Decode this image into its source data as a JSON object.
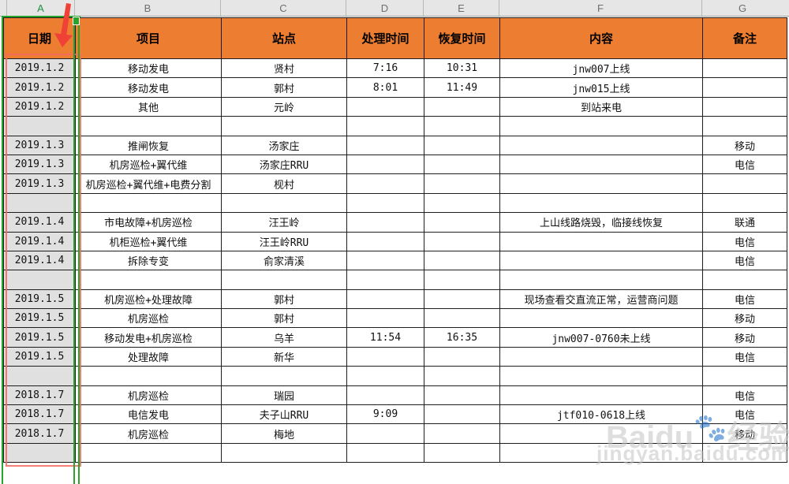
{
  "sheet": {
    "corner_label": "",
    "column_letters": [
      "A",
      "B",
      "C",
      "D",
      "E",
      "F",
      "G"
    ],
    "selected_column": "A",
    "headers": [
      "日期",
      "项目",
      "站点",
      "处理时间",
      "恢复时间",
      "内容",
      "备注"
    ],
    "rows": [
      [
        "2019.1.2",
        "移动发电",
        "贤村",
        "7:16",
        "10:31",
        "jnw007上线",
        ""
      ],
      [
        "2019.1.2",
        "移动发电",
        "郭村",
        "8:01",
        "11:49",
        "jnw015上线",
        ""
      ],
      [
        "2019.1.2",
        "其他",
        "元岭",
        "",
        "",
        "到站来电",
        ""
      ],
      [
        "",
        "",
        "",
        "",
        "",
        "",
        ""
      ],
      [
        "2019.1.3",
        "推闸恢复",
        "汤家庄",
        "",
        "",
        "",
        "移动"
      ],
      [
        "2019.1.3",
        "机房巡检+翼代维",
        "汤家庄RRU",
        "",
        "",
        "",
        "电信"
      ],
      [
        "2019.1.3",
        "机房巡检+翼代维+电费分割",
        "枧村",
        "",
        "",
        "",
        ""
      ],
      [
        "",
        "",
        "",
        "",
        "",
        "",
        ""
      ],
      [
        "2019.1.4",
        "市电故障+机房巡检",
        "汪王岭",
        "",
        "",
        "上山线路烧毁，临接线恢复",
        "联通"
      ],
      [
        "2019.1.4",
        "机柜巡检+翼代维",
        "汪王岭RRU",
        "",
        "",
        "",
        "电信"
      ],
      [
        "2019.1.4",
        "拆除专变",
        "俞家清溪",
        "",
        "",
        "",
        "电信"
      ],
      [
        "",
        "",
        "",
        "",
        "",
        "",
        ""
      ],
      [
        "2019.1.5",
        "机房巡检+处理故障",
        "郭村",
        "",
        "",
        "现场查看交直流正常，运营商问题",
        "电信"
      ],
      [
        "2019.1.5",
        "机房巡检",
        "郭村",
        "",
        "",
        "",
        "移动"
      ],
      [
        "2019.1.5",
        "移动发电+机房巡检",
        "乌羊",
        "11:54",
        "16:35",
        "jnw007-0760未上线",
        "移动"
      ],
      [
        "2019.1.5",
        "处理故障",
        "新华",
        "",
        "",
        "",
        "电信"
      ],
      [
        "",
        "",
        "",
        "",
        "",
        "",
        ""
      ],
      [
        "2018.1.7",
        "机房巡检",
        "瑞园",
        "",
        "",
        "",
        "电信"
      ],
      [
        "2018.1.7",
        "电信发电",
        "夫子山RRU",
        "9:09",
        "",
        "jtf010-0618上线",
        "电信"
      ],
      [
        "2018.1.7",
        "机房巡检",
        "梅地",
        "",
        "",
        "",
        "移动"
      ],
      [
        "",
        "",
        "",
        "",
        "",
        "",
        ""
      ]
    ]
  },
  "annotations": {
    "arrow_icon": "red-arrow-down",
    "selection": "column-A-selected",
    "highlight_box": "red-outline-around-date-column"
  },
  "watermark": {
    "brand": "Baidu",
    "paw": "🐾",
    "brand_cn": "经验",
    "url": "jingyan.baidu.com"
  },
  "colors": {
    "header_bg": "#ED7D31",
    "selection_green": "#28A42C",
    "highlight_red": "#F3685E",
    "date_column_bg": "#E0E0E0"
  }
}
